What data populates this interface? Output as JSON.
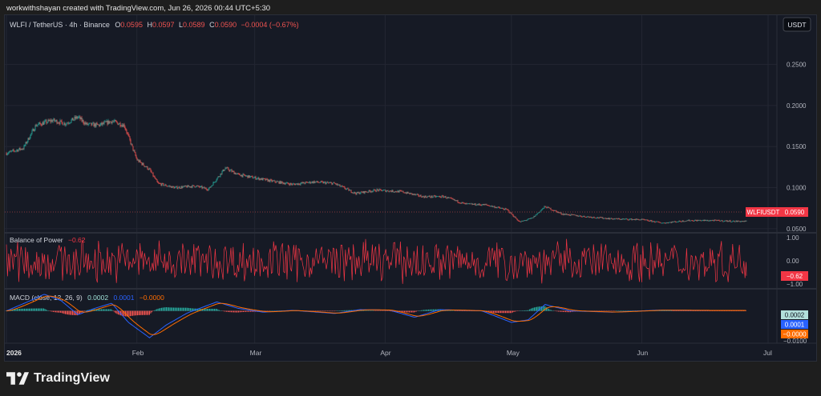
{
  "header": {
    "credit": "workwithshayan created with TradingView.com, Jun 26, 2026 00:44 UTC+5:30"
  },
  "legend": {
    "symbol": "WLFI / TetherUS · 4h · Binance",
    "o_label": "O",
    "o": "0.0595",
    "h_label": "H",
    "h": "0.0597",
    "l_label": "L",
    "l": "0.0589",
    "c_label": "C",
    "c": "0.0590",
    "chg": "−0.0004 (−0.67%)"
  },
  "currency_button": "USDT",
  "price_tag": {
    "label": "WLFIUSDT",
    "value": "0.0590"
  },
  "bop": {
    "title": "Balance of Power",
    "value": "−0.62",
    "ticks": [
      "1.00",
      "0.00",
      "−1.00"
    ]
  },
  "macd": {
    "title": "MACD (close, 12, 26, 9)",
    "v1": "0.0002",
    "v2": "0.0001",
    "v3": "−0.0000",
    "tag1": "0.0002",
    "tag2": "0.0001",
    "tag3": "−0.0000",
    "tick_low": "−0.0100"
  },
  "footer": {
    "brand": "TradingView"
  },
  "colors": {
    "up": "#26a69a",
    "down": "#ef5350",
    "bop": "#f23645",
    "macd": "#2962ff",
    "signal": "#ff6d00",
    "bg": "#161a25"
  },
  "chart_data": {
    "type": "candlestick",
    "symbol": "WLFI / TetherUS",
    "timeframe": "4h",
    "exchange": "Binance",
    "x_ticks": [
      "2026",
      "Feb",
      "Mar",
      "Apr",
      "May",
      "Jun",
      "Jul"
    ],
    "y_ticks": [
      "0.2500",
      "0.2000",
      "0.1500",
      "0.1000",
      "0.0500"
    ],
    "ylim": [
      0.045,
      0.31
    ],
    "last_price": 0.059,
    "price_path": [
      [
        "2026-01-01",
        0.142
      ],
      [
        "2026-01-05",
        0.148
      ],
      [
        "2026-01-08",
        0.176
      ],
      [
        "2026-01-12",
        0.182
      ],
      [
        "2026-01-15",
        0.178
      ],
      [
        "2026-01-18",
        0.186
      ],
      [
        "2026-01-20",
        0.177
      ],
      [
        "2026-01-23",
        0.176
      ],
      [
        "2026-01-26",
        0.181
      ],
      [
        "2026-01-29",
        0.176
      ],
      [
        "2026-02-01",
        0.134
      ],
      [
        "2026-02-04",
        0.122
      ],
      [
        "2026-02-06",
        0.105
      ],
      [
        "2026-02-10",
        0.1
      ],
      [
        "2026-02-15",
        0.102
      ],
      [
        "2026-02-18",
        0.098
      ],
      [
        "2026-02-22",
        0.124
      ],
      [
        "2026-02-25",
        0.116
      ],
      [
        "2026-03-01",
        0.112
      ],
      [
        "2026-03-05",
        0.108
      ],
      [
        "2026-03-10",
        0.104
      ],
      [
        "2026-03-15",
        0.107
      ],
      [
        "2026-03-20",
        0.105
      ],
      [
        "2026-03-25",
        0.093
      ],
      [
        "2026-03-30",
        0.097
      ],
      [
        "2026-04-05",
        0.095
      ],
      [
        "2026-04-10",
        0.089
      ],
      [
        "2026-04-15",
        0.089
      ],
      [
        "2026-04-20",
        0.08
      ],
      [
        "2026-04-25",
        0.079
      ],
      [
        "2026-04-30",
        0.073
      ],
      [
        "2026-05-03",
        0.058
      ],
      [
        "2026-05-06",
        0.063
      ],
      [
        "2026-05-09",
        0.077
      ],
      [
        "2026-05-13",
        0.068
      ],
      [
        "2026-05-18",
        0.065
      ],
      [
        "2026-05-25",
        0.062
      ],
      [
        "2026-06-01",
        0.061
      ],
      [
        "2026-06-06",
        0.057
      ],
      [
        "2026-06-12",
        0.06
      ],
      [
        "2026-06-18",
        0.06
      ],
      [
        "2026-06-23",
        0.059
      ],
      [
        "2026-06-26",
        0.059
      ]
    ],
    "bop_range": [
      -1.0,
      1.0
    ],
    "macd_path": [
      [
        "2026-01-01",
        0.0
      ],
      [
        "2026-01-06",
        0.0035
      ],
      [
        "2026-01-10",
        0.0065
      ],
      [
        "2026-01-14",
        0.004
      ],
      [
        "2026-01-18",
        -0.0015
      ],
      [
        "2026-01-22",
        0.001
      ],
      [
        "2026-01-26",
        0.003
      ],
      [
        "2026-01-30",
        -0.0045
      ],
      [
        "2026-02-04",
        -0.0105
      ],
      [
        "2026-02-08",
        -0.0055
      ],
      [
        "2026-02-13",
        -0.0008
      ],
      [
        "2026-02-20",
        0.0035
      ],
      [
        "2026-02-25",
        0.001
      ],
      [
        "2026-03-03",
        -0.0005
      ],
      [
        "2026-03-10",
        0.0002
      ],
      [
        "2026-03-20",
        -0.001
      ],
      [
        "2026-03-26",
        0.0005
      ],
      [
        "2026-04-02",
        0.0003
      ],
      [
        "2026-04-08",
        -0.0025
      ],
      [
        "2026-04-14",
        0.0005
      ],
      [
        "2026-04-24",
        0.0
      ],
      [
        "2026-05-01",
        -0.0045
      ],
      [
        "2026-05-05",
        -0.0035
      ],
      [
        "2026-05-09",
        0.0025
      ],
      [
        "2026-05-15",
        0.0
      ],
      [
        "2026-05-25",
        -0.0005
      ],
      [
        "2026-06-05",
        0.0003
      ],
      [
        "2026-06-15",
        0.0002
      ],
      [
        "2026-06-26",
        0.0002
      ]
    ],
    "macd_ylim": [
      -0.012,
      0.008
    ]
  }
}
